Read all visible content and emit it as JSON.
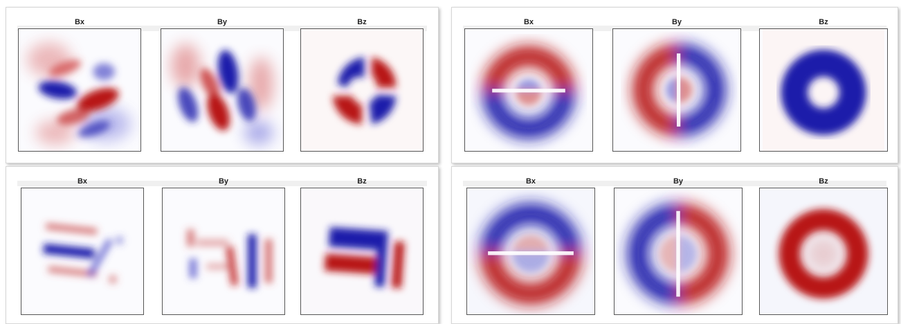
{
  "panels": [
    {
      "id": "top-left",
      "subplots": [
        {
          "title": "Bx",
          "pattern": "tl-bx"
        },
        {
          "title": "By",
          "pattern": "tl-by"
        },
        {
          "title": "Bz",
          "pattern": "tl-bz"
        }
      ]
    },
    {
      "id": "top-right",
      "subplots": [
        {
          "title": "Bx",
          "pattern": "tr-bx"
        },
        {
          "title": "By",
          "pattern": "tr-by"
        },
        {
          "title": "Bz",
          "pattern": "tr-bz"
        }
      ]
    },
    {
      "id": "bottom-left",
      "subplots": [
        {
          "title": "Bx",
          "pattern": "bl-bx"
        },
        {
          "title": "By",
          "pattern": "bl-by"
        },
        {
          "title": "Bz",
          "pattern": "bl-bz"
        }
      ]
    },
    {
      "id": "bottom-right",
      "subplots": [
        {
          "title": "Bx",
          "pattern": "br-bx"
        },
        {
          "title": "By",
          "pattern": "br-by"
        },
        {
          "title": "Bz",
          "pattern": "br-bz"
        }
      ]
    }
  ],
  "colors": {
    "positive": "#c01818",
    "negative": "#1a1aaa",
    "background": "#fbfbfe"
  }
}
